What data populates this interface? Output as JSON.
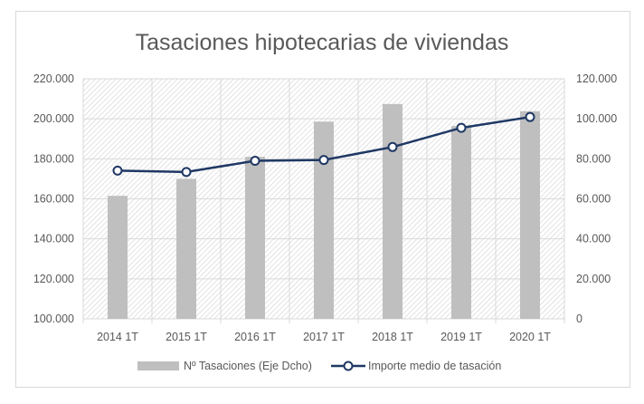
{
  "chart_data": {
    "type": "bar+line",
    "title": "Tasaciones hipotecarias de viviendas",
    "categories": [
      "2014 1T",
      "2015 1T",
      "2016 1T",
      "2017 1T",
      "2018 1T",
      "2019 1T",
      "2020 1T"
    ],
    "series": [
      {
        "name": "Nº Tasaciones (Eje Dcho)",
        "type": "bar",
        "axis": "right",
        "color": "#bfbfbf",
        "values": [
          61500,
          70000,
          81000,
          98600,
          107400,
          96400,
          103800
        ]
      },
      {
        "name": "Importe medio de tasación",
        "type": "line",
        "axis": "left",
        "color": "#1f3864",
        "values": [
          174100,
          173400,
          179000,
          179400,
          185900,
          195500,
          200900
        ]
      }
    ],
    "left_axis": {
      "ylim": [
        100000,
        220000
      ],
      "ticks": [
        "100.000",
        "120.000",
        "140.000",
        "160.000",
        "180.000",
        "200.000",
        "220.000"
      ]
    },
    "right_axis": {
      "ylim": [
        0,
        120000
      ],
      "ticks": [
        "0",
        "20.000",
        "40.000",
        "60.000",
        "80.000",
        "100.000",
        "120.000"
      ]
    },
    "grid": true,
    "legend": "bottom"
  }
}
